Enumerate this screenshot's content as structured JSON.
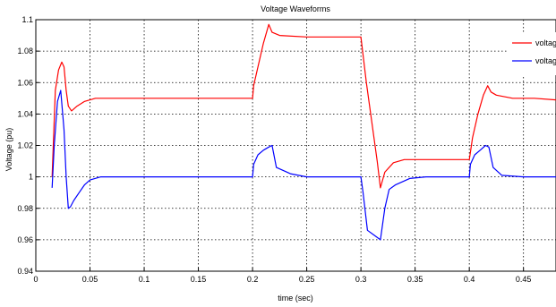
{
  "chart_data": {
    "type": "line",
    "title": "Voltage Waveforms",
    "xlabel": "time (sec)",
    "ylabel": "Voltage (pu)",
    "xlim": [
      0,
      0.48
    ],
    "ylim": [
      0.94,
      1.1
    ],
    "xticks": [
      "0",
      "0.05",
      "0.1",
      "0.15",
      "0.2",
      "0.25",
      "0.3",
      "0.35",
      "0.4",
      "0.45"
    ],
    "yticks": [
      "0.94",
      "0.96",
      "0.98",
      "1",
      "1.02",
      "1.04",
      "1.06",
      "1.08",
      "1.1"
    ],
    "grid": true,
    "legend_position": "top-right",
    "legend_labels": [
      "voltage",
      "voltage"
    ],
    "series": [
      {
        "color": "#ff0000",
        "x": [
          0.015,
          0.018,
          0.021,
          0.024,
          0.026,
          0.028,
          0.03,
          0.033,
          0.038,
          0.045,
          0.055,
          0.07,
          0.1,
          0.15,
          0.2,
          0.201,
          0.205,
          0.21,
          0.215,
          0.218,
          0.225,
          0.25,
          0.28,
          0.3,
          0.305,
          0.315,
          0.318,
          0.322,
          0.33,
          0.34,
          0.36,
          0.4,
          0.403,
          0.408,
          0.413,
          0.417,
          0.42,
          0.425,
          0.44,
          0.46,
          0.48
        ],
        "y": [
          1.0,
          1.055,
          1.068,
          1.073,
          1.07,
          1.055,
          1.045,
          1.042,
          1.045,
          1.048,
          1.05,
          1.05,
          1.05,
          1.05,
          1.05,
          1.058,
          1.07,
          1.085,
          1.097,
          1.092,
          1.09,
          1.089,
          1.089,
          1.089,
          1.06,
          1.01,
          0.993,
          1.003,
          1.009,
          1.011,
          1.011,
          1.011,
          1.025,
          1.04,
          1.052,
          1.058,
          1.054,
          1.052,
          1.05,
          1.05,
          1.049
        ]
      },
      {
        "color": "#0000ff",
        "x": [
          0.015,
          0.017,
          0.02,
          0.023,
          0.026,
          0.028,
          0.03,
          0.032,
          0.035,
          0.04,
          0.045,
          0.05,
          0.06,
          0.07,
          0.1,
          0.15,
          0.2,
          0.201,
          0.205,
          0.21,
          0.215,
          0.218,
          0.222,
          0.235,
          0.25,
          0.28,
          0.3,
          0.302,
          0.306,
          0.312,
          0.318,
          0.322,
          0.326,
          0.332,
          0.345,
          0.36,
          0.4,
          0.401,
          0.405,
          0.41,
          0.415,
          0.418,
          0.422,
          0.43,
          0.45,
          0.48
        ],
        "y": [
          0.993,
          1.02,
          1.048,
          1.055,
          1.03,
          1.0,
          0.98,
          0.981,
          0.985,
          0.99,
          0.995,
          0.998,
          1.0,
          1.0,
          1.0,
          1.0,
          1.0,
          1.008,
          1.014,
          1.017,
          1.019,
          1.02,
          1.006,
          1.002,
          1.0,
          1.0,
          1.0,
          0.99,
          0.966,
          0.963,
          0.96,
          0.98,
          0.992,
          0.995,
          0.999,
          1.0,
          1.0,
          1.008,
          1.014,
          1.017,
          1.02,
          1.019,
          1.006,
          1.001,
          1.0,
          1.0
        ]
      }
    ]
  }
}
